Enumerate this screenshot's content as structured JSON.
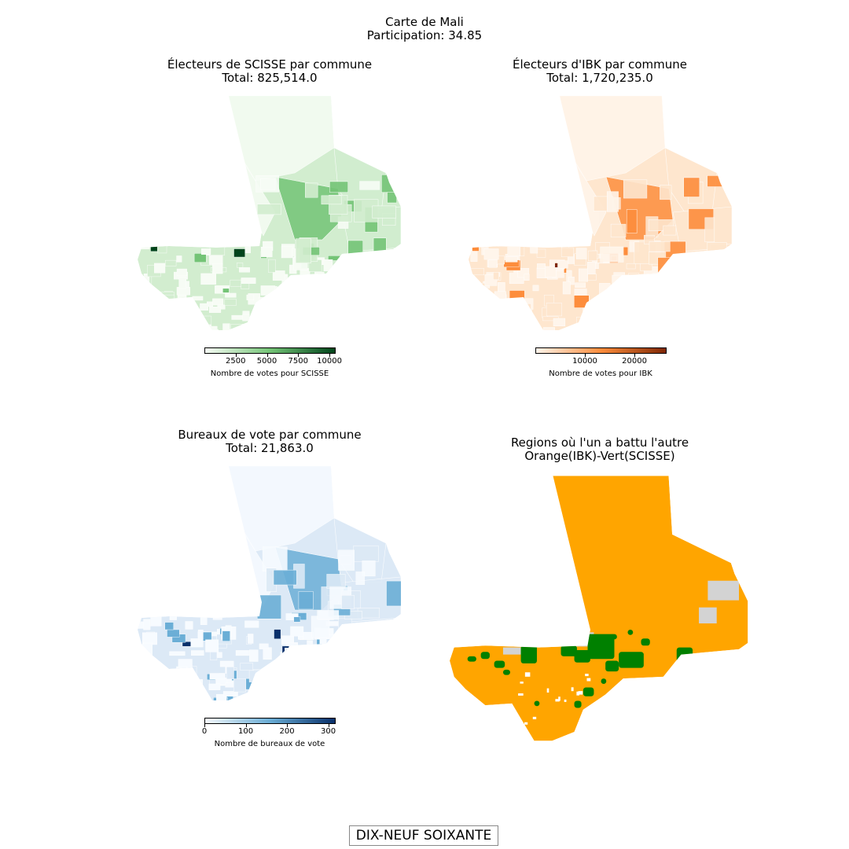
{
  "suptitle": {
    "line1": "Carte de Mali",
    "line2": "Participation: 34.85"
  },
  "panels": {
    "scisse": {
      "title1": "Électeurs de SCISSE par commune",
      "title2": "Total: 825,514.0",
      "colorbar_label": "Nombre de votes pour SCISSE",
      "ticks": [
        "2500",
        "5000",
        "7500",
        "10000"
      ],
      "range": [
        0,
        10500
      ],
      "colors": {
        "low": "#f7fcf5",
        "mid": "#74c476",
        "high": "#00441b",
        "base": "#d2edcf"
      }
    },
    "ibk": {
      "title1": "Électeurs d'IBK par commune",
      "title2": "Total: 1,720,235.0",
      "colorbar_label": "Nombre de votes pour IBK",
      "ticks": [
        "10000",
        "20000"
      ],
      "range": [
        0,
        26500
      ],
      "colors": {
        "low": "#fff5eb",
        "mid": "#fd8d3c",
        "high": "#7f2704",
        "base": "#fee6ce"
      }
    },
    "bureaux": {
      "title1": "Bureaux de vote par commune",
      "title2": "Total: 21,863.0",
      "colorbar_label": "Nombre de bureaux de vote",
      "ticks": [
        "0",
        "100",
        "200",
        "300"
      ],
      "range": [
        0,
        318
      ],
      "colors": {
        "low": "#f7fbff",
        "mid": "#6baed6",
        "high": "#08306b",
        "base": "#dce9f6"
      }
    },
    "winner": {
      "title1": "Regions où l'un a battu l'autre",
      "title2": "Orange(IBK)-Vert(SCISSE)",
      "colors": {
        "ibk": "#ffa500",
        "scisse": "#008000",
        "none": "#d3d3d3"
      }
    }
  },
  "footer": "DIX-NEUF SOIXANTE"
}
